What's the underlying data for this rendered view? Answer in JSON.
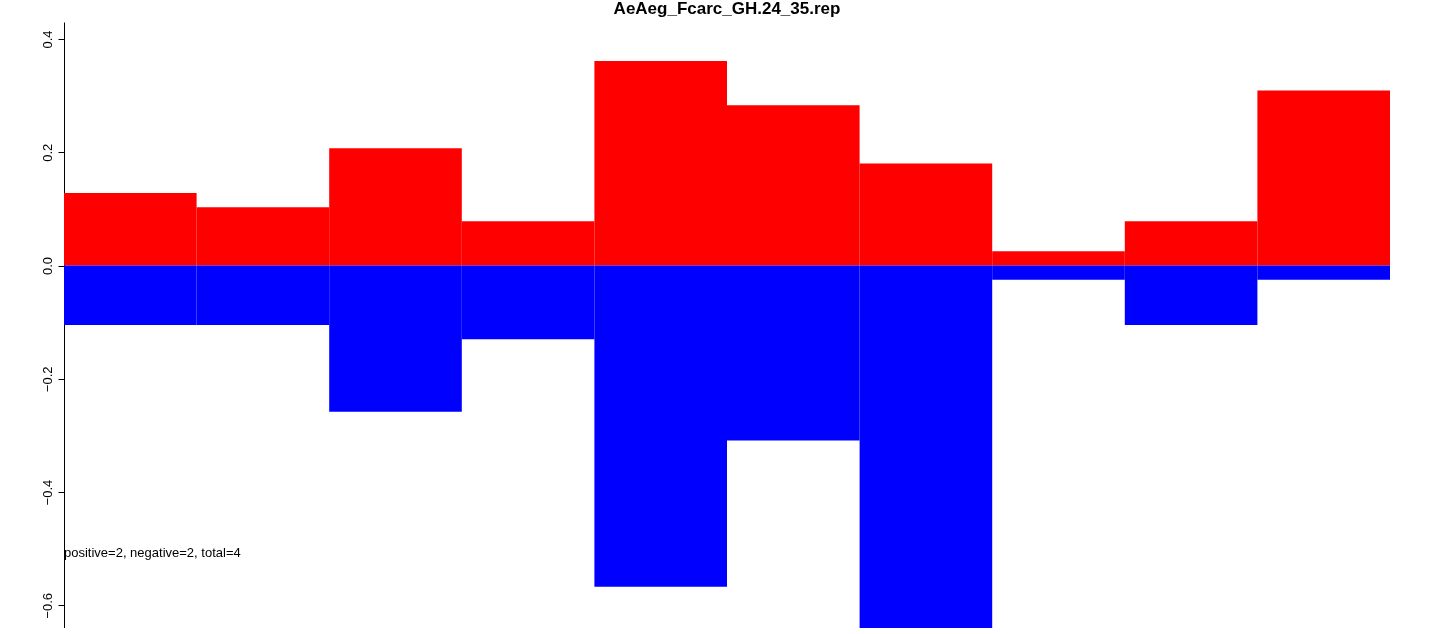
{
  "chart_data": {
    "type": "bar",
    "title": "AeAeg_Fcarc_GH.24_35.rep",
    "stacked": true,
    "categories": [
      null,
      null,
      null,
      null,
      null,
      null,
      null,
      null,
      null,
      null
    ],
    "series": [
      {
        "color": "#ff0000",
        "values": [
          0.128,
          0.103,
          0.207,
          0.078,
          0.361,
          0.283,
          0.18,
          0.025,
          0.078,
          0.309
        ]
      },
      {
        "color": "#0000ff",
        "values": [
          -0.105,
          -0.105,
          -0.258,
          -0.13,
          -0.567,
          -0.309,
          -0.64,
          -0.025,
          -0.105,
          -0.025
        ]
      }
    ],
    "ylim": [
      -0.64,
      0.43
    ],
    "yticks": [
      {
        "value": -0.6,
        "label": "−0.6"
      },
      {
        "value": -0.4,
        "label": "−0.4"
      },
      {
        "value": -0.2,
        "label": "−0.2"
      },
      {
        "value": 0,
        "label": "0.0"
      },
      {
        "value": 0.2,
        "label": "0.2"
      },
      {
        "value": 0.4,
        "label": "0.4"
      }
    ],
    "tick_labels": "y",
    "grid": false,
    "annotations": [
      "positive=2, negative=2, total=4"
    ]
  }
}
